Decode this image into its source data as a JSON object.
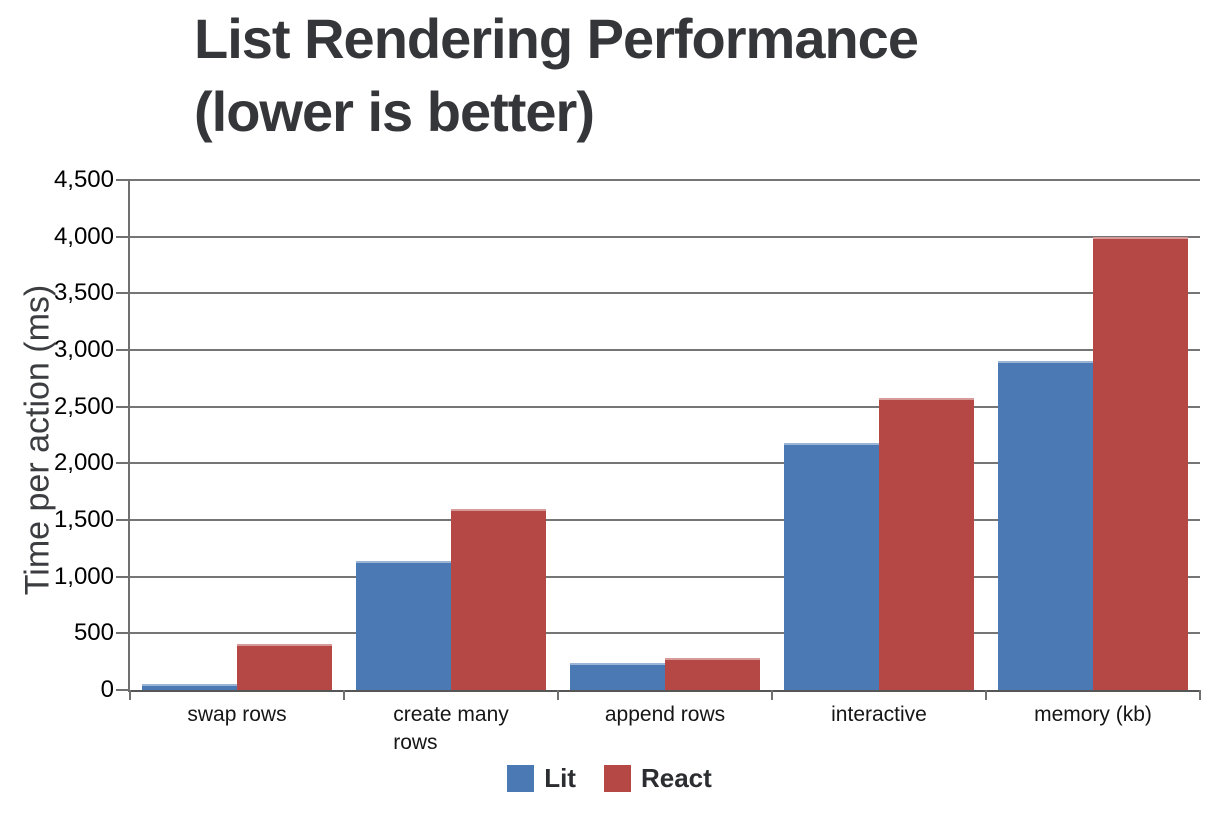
{
  "title": "List Rendering Performance\n(lower is better)",
  "chart_data": {
    "type": "bar",
    "title": "List Rendering Performance (lower is better)",
    "categories": [
      "swap rows",
      "create many\nrows",
      "append rows",
      "interactive",
      "memory (kb)"
    ],
    "series": [
      {
        "name": "Lit",
        "color": "#4a79b4",
        "values": [
          50,
          1140,
          240,
          2180,
          2900
        ]
      },
      {
        "name": "React",
        "color": "#b54845",
        "values": [
          410,
          1600,
          280,
          2580,
          4000
        ]
      }
    ],
    "xlabel": "",
    "ylabel": "Time per action (ms)",
    "ylim": [
      0,
      4500
    ],
    "ytick_step": 500,
    "ytick_labels": [
      "0",
      "500",
      "1,000",
      "1,500",
      "2,000",
      "2,500",
      "3,000",
      "3,500",
      "4,000",
      "4,500"
    ],
    "grid": true,
    "legend_position": "bottom",
    "legend": [
      "Lit",
      "React"
    ]
  }
}
